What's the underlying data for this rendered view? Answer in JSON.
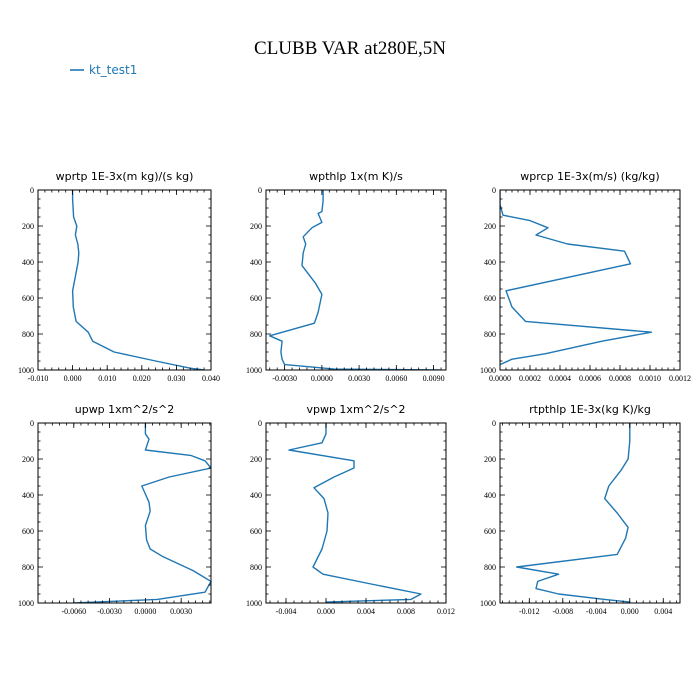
{
  "figure": {
    "title": "CLUBB VAR at280E,5N",
    "legend": {
      "label": "kt_test1",
      "color": "#1f77b4"
    }
  },
  "chart_data": [
    {
      "type": "line",
      "title": "wprtp   1E-3x(m kg)/(s kg)",
      "xlim": [
        -0.01,
        0.04
      ],
      "ylim": [
        0,
        1000
      ],
      "y_inverted": true,
      "xticks": [
        -0.01,
        0.0,
        0.01,
        0.02,
        0.03,
        0.04
      ],
      "xtick_labels": [
        "-0.010",
        "0.000",
        "0.010",
        "0.020",
        "0.030",
        "0.040"
      ],
      "yticks": [
        0,
        200,
        400,
        600,
        800,
        1000
      ],
      "ytick_labels": [
        "0",
        "200",
        "400",
        "600",
        "800",
        "1000"
      ],
      "series": [
        {
          "color": "#1f77b4",
          "x": [
            0.0,
            0.0,
            0.0003,
            0.0012,
            0.0008,
            0.0015,
            0.0018,
            0.0016,
            0.0008,
            0.0,
            0.0002,
            0.001,
            0.0045,
            0.0058,
            0.012,
            0.024,
            0.034,
            0.038
          ],
          "y": [
            0,
            50,
            150,
            200,
            250,
            300,
            350,
            400,
            480,
            560,
            650,
            730,
            790,
            840,
            900,
            950,
            990,
            1000
          ]
        }
      ]
    },
    {
      "type": "line",
      "title": "wpthlp   1x(m K)/s",
      "xlim": [
        -0.0045,
        0.01
      ],
      "ylim": [
        0,
        1000
      ],
      "y_inverted": true,
      "xticks": [
        -0.003,
        0.0,
        0.003,
        0.006,
        0.009
      ],
      "xtick_labels": [
        "-0.0030",
        "0.0000",
        "0.0030",
        "0.0060",
        "0.0090"
      ],
      "yticks": [
        0,
        200,
        400,
        600,
        800,
        1000
      ],
      "ytick_labels": [
        "0",
        "200",
        "400",
        "600",
        "800",
        "1000"
      ],
      "series": [
        {
          "color": "#1f77b4",
          "x": [
            0.0001,
            0.0001,
            0.0,
            -0.0003,
            0.0,
            -0.0008,
            -0.0015,
            -0.0013,
            -0.0015,
            -0.0016,
            -0.0005,
            0.0,
            -0.0003,
            -0.0006,
            -0.0042,
            -0.0032,
            -0.0033,
            -0.0032,
            -0.003,
            0.001,
            0.0095
          ],
          "y": [
            0,
            60,
            120,
            130,
            180,
            210,
            260,
            300,
            350,
            420,
            520,
            580,
            680,
            740,
            810,
            840,
            900,
            940,
            970,
            995,
            1000
          ]
        }
      ]
    },
    {
      "type": "line",
      "title": "wprcp   1E-3x(m/s) (kg/kg)",
      "xlim": [
        0.0,
        0.0012
      ],
      "ylim": [
        0,
        1000
      ],
      "y_inverted": true,
      "xticks": [
        0.0,
        0.0002,
        0.0004,
        0.0006,
        0.0008,
        0.001,
        0.0012
      ],
      "xtick_labels": [
        "0.0000",
        "0.0002",
        "0.0004",
        "0.0006",
        "0.0008",
        "0.0010",
        "0.0012"
      ],
      "yticks": [
        0,
        200,
        400,
        600,
        800,
        1000
      ],
      "ytick_labels": [
        "0",
        "200",
        "400",
        "600",
        "800",
        "1000"
      ],
      "series": [
        {
          "color": "#1f77b4",
          "x": [
            0.0,
            0.0,
            2e-05,
            0.0002,
            0.00032,
            0.00024,
            0.00045,
            0.00083,
            0.00087,
            4e-05,
            8e-05,
            0.00017,
            0.00101,
            0.00068,
            0.0003,
            8e-05,
            0.0
          ],
          "y": [
            0,
            80,
            140,
            170,
            210,
            250,
            300,
            340,
            410,
            560,
            650,
            730,
            790,
            840,
            910,
            940,
            970
          ]
        }
      ]
    },
    {
      "type": "line",
      "title": "upwp   1xm^2/s^2",
      "xlim": [
        -0.009,
        0.0055
      ],
      "ylim": [
        0,
        1000
      ],
      "y_inverted": true,
      "xticks": [
        -0.006,
        -0.003,
        0.0,
        0.003
      ],
      "xtick_labels": [
        "-0.0060",
        "-0.0030",
        "0.0000",
        "0.0030"
      ],
      "yticks": [
        0,
        200,
        400,
        600,
        800,
        1000
      ],
      "ytick_labels": [
        "0",
        "200",
        "400",
        "600",
        "800",
        "1000"
      ],
      "series": [
        {
          "color": "#1f77b4",
          "x": [
            0.0,
            0.0,
            0.0003,
            0.0,
            0.0038,
            0.005,
            0.0055,
            0.002,
            -0.0003,
            0.0003,
            0.0004,
            0.0,
            0.0001,
            0.0004,
            0.0014,
            0.004,
            0.0055,
            0.005,
            0.001,
            -0.006
          ],
          "y": [
            0,
            60,
            90,
            150,
            180,
            210,
            250,
            300,
            350,
            440,
            490,
            570,
            650,
            700,
            740,
            820,
            880,
            940,
            980,
            1000
          ]
        }
      ]
    },
    {
      "type": "line",
      "title": "vpwp   1xm^2/s^2",
      "xlim": [
        -0.006,
        0.012
      ],
      "ylim": [
        0,
        1000
      ],
      "y_inverted": true,
      "xticks": [
        -0.004,
        0.0,
        0.004,
        0.008,
        0.012
      ],
      "xtick_labels": [
        "-0.004",
        "0.000",
        "0.004",
        "0.008",
        "0.012"
      ],
      "yticks": [
        0,
        200,
        400,
        600,
        800,
        1000
      ],
      "ytick_labels": [
        "0",
        "200",
        "400",
        "600",
        "800",
        "1000"
      ],
      "series": [
        {
          "color": "#1f77b4",
          "x": [
            0.0,
            0.0,
            -0.0004,
            -0.0037,
            0.0028,
            0.0028,
            0.0008,
            -0.0012,
            -0.0002,
            0.0002,
            0.0001,
            -0.0004,
            -0.0013,
            -0.0003,
            0.005,
            0.0095,
            0.0085,
            0.0
          ],
          "y": [
            0,
            60,
            110,
            150,
            210,
            250,
            300,
            360,
            420,
            500,
            600,
            700,
            800,
            840,
            900,
            950,
            980,
            995
          ]
        }
      ]
    },
    {
      "type": "line",
      "title": "rtpthlp   1E-3x(kg K)/kg",
      "xlim": [
        -0.0155,
        0.006
      ],
      "ylim": [
        0,
        1000
      ],
      "y_inverted": true,
      "xticks": [
        -0.012,
        -0.008,
        -0.004,
        0.0,
        0.004
      ],
      "xtick_labels": [
        "-0.012",
        "-0.008",
        "-0.004",
        "0.000",
        "0.004"
      ],
      "yticks": [
        0,
        200,
        400,
        600,
        800,
        1000
      ],
      "ytick_labels": [
        "0",
        "200",
        "400",
        "600",
        "800",
        "1000"
      ],
      "series": [
        {
          "color": "#1f77b4",
          "x": [
            0.0,
            0.0,
            -0.0002,
            -0.001,
            -0.0025,
            -0.003,
            -0.0015,
            -0.0002,
            -0.0005,
            -0.0015,
            -0.0135,
            -0.0085,
            -0.011,
            -0.0112,
            -0.0085,
            -0.003,
            0.0
          ],
          "y": [
            0,
            100,
            200,
            260,
            350,
            420,
            500,
            580,
            640,
            730,
            800,
            840,
            880,
            920,
            950,
            980,
            995
          ]
        }
      ]
    }
  ]
}
